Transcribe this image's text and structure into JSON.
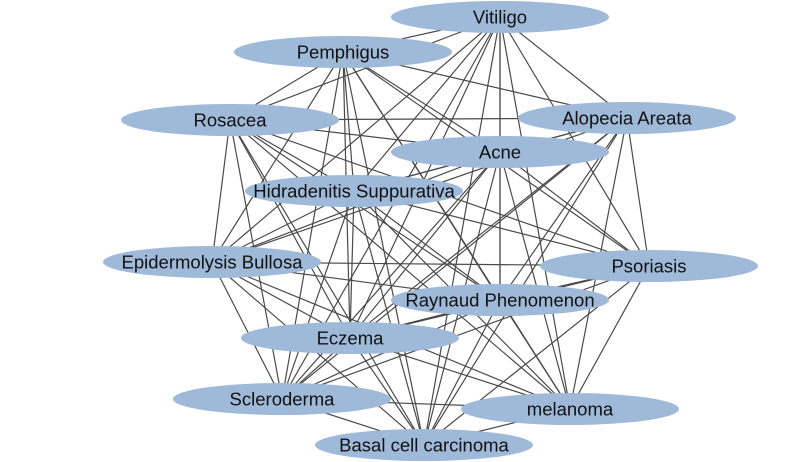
{
  "graph": {
    "node_color": "#9fb9d9",
    "edge_color": "#4a4a4a",
    "nodes": [
      {
        "id": "vitiligo",
        "label": "Vitiligo"
      },
      {
        "id": "pemphigus",
        "label": "Pemphigus"
      },
      {
        "id": "rosacea",
        "label": "Rosacea"
      },
      {
        "id": "alopecia",
        "label": "Alopecia Areata"
      },
      {
        "id": "acne",
        "label": "Acne"
      },
      {
        "id": "hidradenitis",
        "label": "Hidradenitis Suppurativa"
      },
      {
        "id": "epidermolysis",
        "label": "Epidermolysis Bullosa"
      },
      {
        "id": "psoriasis",
        "label": "Psoriasis"
      },
      {
        "id": "raynaud",
        "label": "Raynaud Phenomenon"
      },
      {
        "id": "eczema",
        "label": "Eczema"
      },
      {
        "id": "scleroderma",
        "label": "Scleroderma"
      },
      {
        "id": "melanoma",
        "label": "melanoma"
      },
      {
        "id": "bcc",
        "label": "Basal cell carcinoma"
      }
    ],
    "edges": [
      [
        "vitiligo",
        "pemphigus"
      ],
      [
        "vitiligo",
        "rosacea"
      ],
      [
        "vitiligo",
        "alopecia"
      ],
      [
        "vitiligo",
        "acne"
      ],
      [
        "vitiligo",
        "hidradenitis"
      ],
      [
        "vitiligo",
        "epidermolysis"
      ],
      [
        "vitiligo",
        "psoriasis"
      ],
      [
        "vitiligo",
        "raynaud"
      ],
      [
        "vitiligo",
        "eczema"
      ],
      [
        "vitiligo",
        "scleroderma"
      ],
      [
        "vitiligo",
        "melanoma"
      ],
      [
        "vitiligo",
        "bcc"
      ],
      [
        "pemphigus",
        "rosacea"
      ],
      [
        "pemphigus",
        "alopecia"
      ],
      [
        "pemphigus",
        "acne"
      ],
      [
        "pemphigus",
        "hidradenitis"
      ],
      [
        "pemphigus",
        "epidermolysis"
      ],
      [
        "pemphigus",
        "psoriasis"
      ],
      [
        "pemphigus",
        "raynaud"
      ],
      [
        "pemphigus",
        "eczema"
      ],
      [
        "pemphigus",
        "scleroderma"
      ],
      [
        "pemphigus",
        "melanoma"
      ],
      [
        "pemphigus",
        "bcc"
      ],
      [
        "rosacea",
        "alopecia"
      ],
      [
        "rosacea",
        "acne"
      ],
      [
        "rosacea",
        "hidradenitis"
      ],
      [
        "rosacea",
        "epidermolysis"
      ],
      [
        "rosacea",
        "psoriasis"
      ],
      [
        "rosacea",
        "raynaud"
      ],
      [
        "rosacea",
        "eczema"
      ],
      [
        "rosacea",
        "scleroderma"
      ],
      [
        "rosacea",
        "melanoma"
      ],
      [
        "rosacea",
        "bcc"
      ],
      [
        "alopecia",
        "acne"
      ],
      [
        "alopecia",
        "hidradenitis"
      ],
      [
        "alopecia",
        "epidermolysis"
      ],
      [
        "alopecia",
        "psoriasis"
      ],
      [
        "alopecia",
        "raynaud"
      ],
      [
        "alopecia",
        "eczema"
      ],
      [
        "alopecia",
        "scleroderma"
      ],
      [
        "alopecia",
        "melanoma"
      ],
      [
        "alopecia",
        "bcc"
      ],
      [
        "acne",
        "hidradenitis"
      ],
      [
        "acne",
        "epidermolysis"
      ],
      [
        "acne",
        "psoriasis"
      ],
      [
        "acne",
        "raynaud"
      ],
      [
        "acne",
        "eczema"
      ],
      [
        "acne",
        "scleroderma"
      ],
      [
        "acne",
        "melanoma"
      ],
      [
        "acne",
        "bcc"
      ],
      [
        "hidradenitis",
        "epidermolysis"
      ],
      [
        "hidradenitis",
        "psoriasis"
      ],
      [
        "hidradenitis",
        "raynaud"
      ],
      [
        "hidradenitis",
        "eczema"
      ],
      [
        "hidradenitis",
        "scleroderma"
      ],
      [
        "hidradenitis",
        "melanoma"
      ],
      [
        "hidradenitis",
        "bcc"
      ],
      [
        "epidermolysis",
        "psoriasis"
      ],
      [
        "epidermolysis",
        "raynaud"
      ],
      [
        "epidermolysis",
        "eczema"
      ],
      [
        "epidermolysis",
        "scleroderma"
      ],
      [
        "epidermolysis",
        "melanoma"
      ],
      [
        "epidermolysis",
        "bcc"
      ],
      [
        "psoriasis",
        "raynaud"
      ],
      [
        "psoriasis",
        "eczema"
      ],
      [
        "psoriasis",
        "scleroderma"
      ],
      [
        "psoriasis",
        "melanoma"
      ],
      [
        "psoriasis",
        "bcc"
      ],
      [
        "raynaud",
        "eczema"
      ],
      [
        "raynaud",
        "scleroderma"
      ],
      [
        "raynaud",
        "melanoma"
      ],
      [
        "raynaud",
        "bcc"
      ],
      [
        "eczema",
        "scleroderma"
      ],
      [
        "eczema",
        "melanoma"
      ],
      [
        "eczema",
        "bcc"
      ],
      [
        "scleroderma",
        "melanoma"
      ],
      [
        "scleroderma",
        "bcc"
      ],
      [
        "melanoma",
        "bcc"
      ]
    ]
  }
}
